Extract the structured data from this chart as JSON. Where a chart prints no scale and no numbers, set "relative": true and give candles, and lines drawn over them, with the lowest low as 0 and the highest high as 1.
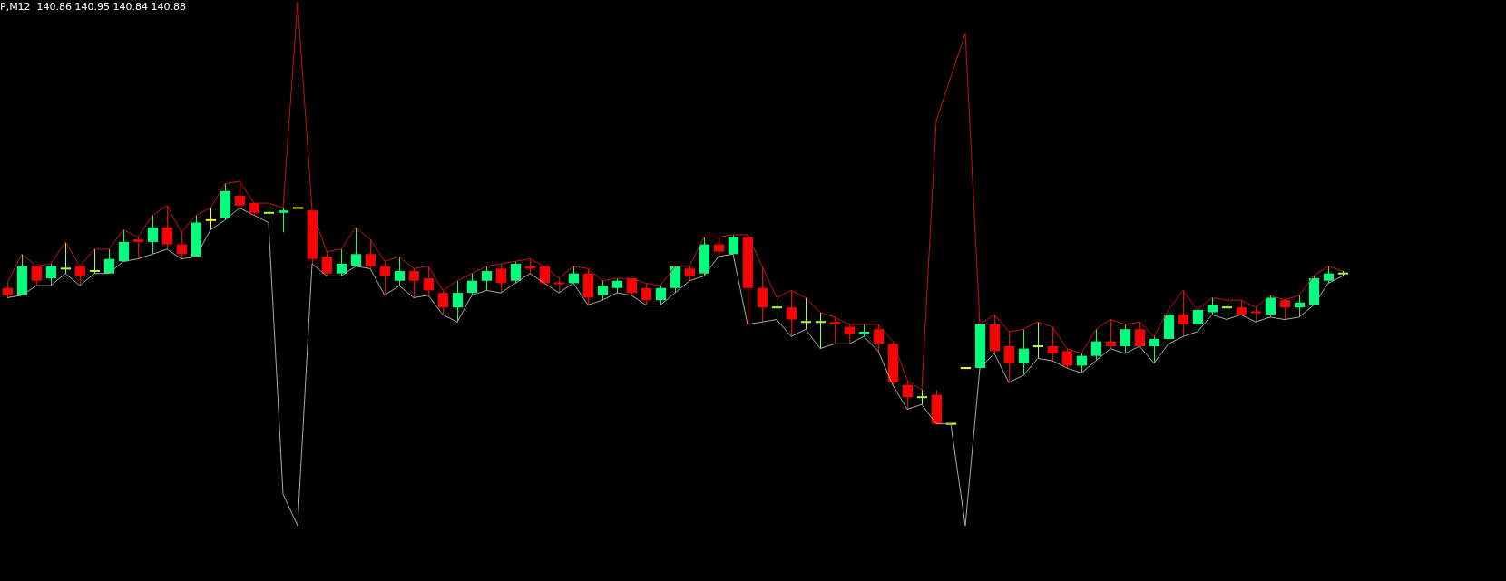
{
  "chart_data": {
    "type": "candlestick",
    "relative": true,
    "title": "P,M12  140.86 140.95 140.84 140.88",
    "categories": [
      null,
      null,
      null,
      null,
      null,
      null,
      null,
      null,
      null,
      null,
      null,
      null,
      null,
      null,
      null,
      null,
      null,
      null,
      null,
      null,
      null,
      null,
      null,
      null,
      null,
      null,
      null,
      null,
      null,
      null,
      null,
      null,
      null,
      null,
      null,
      null,
      null,
      null,
      null,
      null,
      null,
      null,
      null,
      null,
      null,
      null,
      null,
      null,
      null,
      null,
      null,
      null,
      null,
      null,
      null,
      null,
      null,
      null,
      null,
      null,
      null,
      null,
      null,
      null,
      null,
      null,
      null,
      null,
      null,
      null,
      null,
      null,
      null,
      null,
      null,
      null,
      null,
      null,
      null,
      null,
      null,
      null,
      null,
      null,
      null,
      null,
      null,
      null,
      null,
      null,
      null,
      null,
      null
    ],
    "ohlc": [
      [
        0.56,
        0.58,
        0.52,
        0.53
      ],
      [
        0.53,
        0.7,
        0.53,
        0.65
      ],
      [
        0.65,
        0.65,
        0.57,
        0.59
      ],
      [
        0.6,
        0.66,
        0.57,
        0.65
      ],
      [
        0.64,
        0.75,
        0.62,
        0.64
      ],
      [
        0.65,
        0.65,
        0.57,
        0.61
      ],
      [
        0.63,
        0.72,
        0.62,
        0.63
      ],
      [
        0.62,
        0.72,
        0.62,
        0.68
      ],
      [
        0.67,
        0.8,
        0.67,
        0.75
      ],
      [
        0.76,
        0.77,
        0.68,
        0.75
      ],
      [
        0.75,
        0.86,
        0.7,
        0.81
      ],
      [
        0.81,
        0.9,
        0.72,
        0.74
      ],
      [
        0.74,
        0.79,
        0.68,
        0.7
      ],
      [
        0.69,
        0.86,
        0.69,
        0.83
      ],
      [
        0.84,
        0.89,
        0.8,
        0.84
      ],
      [
        0.85,
        0.99,
        0.84,
        0.96
      ],
      [
        0.94,
        1.0,
        0.89,
        0.9
      ],
      [
        0.91,
        0.91,
        0.86,
        0.87
      ],
      [
        0.87,
        0.91,
        0.83,
        0.87
      ],
      [
        0.87,
        0.89,
        0.79,
        0.88
      ],
      [
        0.89,
        0.89,
        0.89,
        0.89
      ],
      [
        0.88,
        0.88,
        0.66,
        0.68
      ],
      [
        0.69,
        0.71,
        0.61,
        0.62
      ],
      [
        0.62,
        0.72,
        0.61,
        0.66
      ],
      [
        0.65,
        0.81,
        0.65,
        0.7
      ],
      [
        0.7,
        0.76,
        0.64,
        0.65
      ],
      [
        0.65,
        0.67,
        0.53,
        0.61
      ],
      [
        0.59,
        0.69,
        0.57,
        0.63
      ],
      [
        0.63,
        0.64,
        0.52,
        0.59
      ],
      [
        0.6,
        0.65,
        0.53,
        0.55
      ],
      [
        0.54,
        0.55,
        0.45,
        0.48
      ],
      [
        0.48,
        0.59,
        0.42,
        0.54
      ],
      [
        0.54,
        0.62,
        0.53,
        0.59
      ],
      [
        0.59,
        0.65,
        0.55,
        0.63
      ],
      [
        0.64,
        0.66,
        0.54,
        0.58
      ],
      [
        0.59,
        0.67,
        0.58,
        0.66
      ],
      [
        0.65,
        0.68,
        0.62,
        0.64
      ],
      [
        0.65,
        0.65,
        0.58,
        0.58
      ],
      [
        0.58,
        0.6,
        0.54,
        0.58
      ],
      [
        0.58,
        0.65,
        0.58,
        0.62
      ],
      [
        0.62,
        0.64,
        0.49,
        0.52
      ],
      [
        0.53,
        0.59,
        0.51,
        0.57
      ],
      [
        0.56,
        0.6,
        0.54,
        0.59
      ],
      [
        0.6,
        0.6,
        0.53,
        0.54
      ],
      [
        0.56,
        0.58,
        0.49,
        0.51
      ],
      [
        0.51,
        0.57,
        0.49,
        0.56
      ],
      [
        0.56,
        0.65,
        0.54,
        0.65
      ],
      [
        0.64,
        0.65,
        0.59,
        0.61
      ],
      [
        0.62,
        0.77,
        0.61,
        0.74
      ],
      [
        0.74,
        0.77,
        0.69,
        0.71
      ],
      [
        0.7,
        0.78,
        0.7,
        0.77
      ],
      [
        0.77,
        0.78,
        0.41,
        0.56
      ],
      [
        0.56,
        0.65,
        0.42,
        0.48
      ],
      [
        0.48,
        0.52,
        0.43,
        0.48
      ],
      [
        0.48,
        0.55,
        0.36,
        0.43
      ],
      [
        0.42,
        0.52,
        0.39,
        0.42
      ],
      [
        0.42,
        0.46,
        0.31,
        0.42
      ],
      [
        0.42,
        0.44,
        0.33,
        0.41
      ],
      [
        0.4,
        0.41,
        0.33,
        0.37
      ],
      [
        0.37,
        0.41,
        0.36,
        0.38
      ],
      [
        0.39,
        0.41,
        0.3,
        0.33
      ],
      [
        0.33,
        0.34,
        0.16,
        0.17
      ],
      [
        0.16,
        0.18,
        0.06,
        0.11
      ],
      [
        0.11,
        0.14,
        0.08,
        0.11
      ],
      [
        0.12,
        0.14,
        0.0,
        0.0
      ],
      [
        0.0,
        0.0,
        0.0,
        0.0
      ],
      [
        0.23,
        0.23,
        0.23,
        0.23
      ],
      [
        0.23,
        0.41,
        0.23,
        0.41
      ],
      [
        0.41,
        0.45,
        0.29,
        0.3
      ],
      [
        0.32,
        0.38,
        0.17,
        0.25
      ],
      [
        0.25,
        0.39,
        0.2,
        0.31
      ],
      [
        0.32,
        0.42,
        0.27,
        0.32
      ],
      [
        0.32,
        0.4,
        0.26,
        0.29
      ],
      [
        0.3,
        0.31,
        0.23,
        0.24
      ],
      [
        0.24,
        0.29,
        0.21,
        0.28
      ],
      [
        0.28,
        0.39,
        0.26,
        0.34
      ],
      [
        0.34,
        0.43,
        0.31,
        0.32
      ],
      [
        0.32,
        0.41,
        0.29,
        0.39
      ],
      [
        0.39,
        0.42,
        0.32,
        0.32
      ],
      [
        0.32,
        0.36,
        0.25,
        0.35
      ],
      [
        0.35,
        0.47,
        0.33,
        0.45
      ],
      [
        0.45,
        0.55,
        0.36,
        0.41
      ],
      [
        0.41,
        0.47,
        0.38,
        0.47
      ],
      [
        0.46,
        0.52,
        0.45,
        0.49
      ],
      [
        0.48,
        0.51,
        0.43,
        0.48
      ],
      [
        0.48,
        0.51,
        0.45,
        0.45
      ],
      [
        0.46,
        0.48,
        0.42,
        0.46
      ],
      [
        0.45,
        0.53,
        0.44,
        0.52
      ],
      [
        0.51,
        0.51,
        0.43,
        0.48
      ],
      [
        0.48,
        0.53,
        0.44,
        0.5
      ],
      [
        0.49,
        0.61,
        0.49,
        0.6
      ],
      [
        0.59,
        0.65,
        0.58,
        0.62
      ],
      [
        0.62,
        0.63,
        0.61,
        0.62
      ]
    ],
    "colors": [
      "#ff0000",
      "#00ff7f",
      "#ff0000",
      "#00ff7f",
      "#adff2f",
      "#ff0000",
      "#adff2f",
      "#00ff7f",
      "#00ff7f",
      "#ff0000",
      "#00ff7f",
      "#ff0000",
      "#ff0000",
      "#00ff7f",
      "#ffff00",
      "#00ff7f",
      "#ff0000",
      "#ff0000",
      "#adff2f",
      "#00ff7f",
      "#ffff00",
      "#ff0000",
      "#ff0000",
      "#00ff7f",
      "#00ff7f",
      "#ff0000",
      "#ff0000",
      "#00ff7f",
      "#ff0000",
      "#ff0000",
      "#ff0000",
      "#00ff7f",
      "#00ff7f",
      "#00ff7f",
      "#ff0000",
      "#00ff7f",
      "#ff0000",
      "#ff0000",
      "#ff0000",
      "#00ff7f",
      "#ff0000",
      "#00ff7f",
      "#00ff7f",
      "#ff0000",
      "#ff0000",
      "#00ff7f",
      "#00ff7f",
      "#ff0000",
      "#00ff7f",
      "#ff0000",
      "#00ff7f",
      "#ff0000",
      "#ff0000",
      "#adff2f",
      "#ff0000",
      "#adff2f",
      "#adff2f",
      "#ff0000",
      "#ff0000",
      "#00ff7f",
      "#ff0000",
      "#ff0000",
      "#ff0000",
      "#adff2f",
      "#ff0000",
      "#ffff00",
      "#ffff00",
      "#00ff7f",
      "#ff0000",
      "#ff0000",
      "#00ff7f",
      "#adff2f",
      "#ff0000",
      "#ff0000",
      "#00ff7f",
      "#00ff7f",
      "#ff0000",
      "#00ff7f",
      "#ff0000",
      "#00ff7f",
      "#00ff7f",
      "#ff0000",
      "#00ff7f",
      "#00ff7f",
      "#adff2f",
      "#ff0000",
      "#ff0000",
      "#00ff7f",
      "#ff0000",
      "#00ff7f",
      "#00ff7f",
      "#00ff7f",
      "#adff2f"
    ],
    "series": [
      {
        "type": "line",
        "color": "#c81414",
        "values": [
          0.58,
          0.7,
          0.65,
          0.66,
          0.75,
          0.65,
          0.72,
          0.72,
          0.8,
          0.77,
          0.86,
          0.9,
          0.79,
          0.86,
          0.89,
          0.99,
          1.0,
          0.91,
          0.91,
          0.89,
          1.74,
          0.88,
          0.71,
          0.72,
          0.81,
          0.76,
          0.67,
          0.69,
          0.64,
          0.65,
          0.55,
          0.59,
          0.62,
          0.65,
          0.66,
          0.67,
          0.68,
          0.65,
          0.6,
          0.65,
          0.64,
          0.59,
          0.6,
          0.6,
          0.58,
          0.57,
          0.65,
          0.65,
          0.77,
          0.77,
          0.78,
          0.78,
          0.65,
          0.52,
          0.55,
          0.52,
          0.46,
          0.44,
          0.41,
          0.41,
          0.41,
          0.34,
          0.18,
          0.14,
          1.25,
          1.43,
          1.61,
          0.41,
          0.45,
          0.38,
          0.39,
          0.42,
          0.4,
          0.31,
          0.29,
          0.39,
          0.43,
          0.41,
          0.42,
          0.36,
          0.47,
          0.55,
          0.47,
          0.52,
          0.51,
          0.51,
          0.48,
          0.53,
          0.51,
          0.53,
          0.61,
          0.65,
          0.63
        ]
      },
      {
        "type": "line",
        "color": "#a9a9a9",
        "values": [
          0.52,
          0.53,
          0.57,
          0.57,
          0.62,
          0.57,
          0.62,
          0.62,
          0.67,
          0.68,
          0.7,
          0.72,
          0.68,
          0.69,
          0.8,
          0.84,
          0.89,
          0.86,
          0.83,
          -0.29,
          -0.42,
          0.66,
          0.61,
          0.61,
          0.65,
          0.64,
          0.53,
          0.57,
          0.52,
          0.53,
          0.45,
          0.42,
          0.53,
          0.55,
          0.54,
          0.58,
          0.62,
          0.58,
          0.54,
          0.58,
          0.49,
          0.51,
          0.54,
          0.53,
          0.49,
          0.49,
          0.54,
          0.59,
          0.61,
          0.69,
          0.7,
          0.41,
          0.42,
          0.43,
          0.36,
          0.39,
          0.31,
          0.33,
          0.33,
          0.36,
          0.3,
          0.16,
          0.06,
          0.08,
          0.0,
          0.0,
          -0.42,
          0.23,
          0.29,
          0.17,
          0.2,
          0.27,
          0.26,
          0.23,
          0.21,
          0.26,
          0.31,
          0.29,
          0.32,
          0.25,
          0.33,
          0.36,
          0.38,
          0.45,
          0.43,
          0.45,
          0.42,
          0.44,
          0.43,
          0.44,
          0.49,
          0.58,
          0.61
        ]
      }
    ]
  }
}
